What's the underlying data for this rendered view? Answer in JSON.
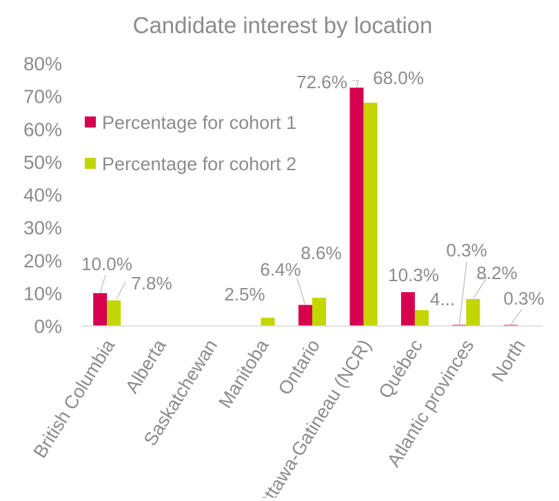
{
  "chart_data": {
    "type": "bar",
    "title": "Candidate interest by location",
    "categories": [
      "British Columbia",
      "Alberta",
      "Saskatchewan",
      "Manitoba",
      "Ontario",
      "Ottawa-Gatineau (NCR)",
      "Québec",
      "Atlantic provinces",
      "North"
    ],
    "series": [
      {
        "name": "Percentage for cohort 1",
        "color": "#d6004f",
        "values": [
          10.0,
          null,
          null,
          null,
          6.4,
          72.6,
          10.3,
          0.3,
          0.3
        ],
        "labels": [
          "10.0%",
          "",
          "",
          "",
          "6.4%",
          "72.6%",
          "10.3%",
          "0.3%",
          "0.3%"
        ]
      },
      {
        "name": "Percentage for cohort 2",
        "color": "#c3d600",
        "values": [
          7.8,
          null,
          null,
          2.5,
          8.6,
          68.0,
          4.8,
          8.2,
          null
        ],
        "labels": [
          "7.8%",
          "",
          "",
          "2.5%",
          "8.6%",
          "68.0%",
          "4...",
          "8.2%",
          ""
        ]
      }
    ],
    "y_ticks": [
      "0%",
      "10%",
      "20%",
      "30%",
      "40%",
      "50%",
      "60%",
      "70%",
      "80%"
    ],
    "ylim": [
      0,
      80
    ],
    "grid": false,
    "legend_position": "top-left inside plot"
  }
}
